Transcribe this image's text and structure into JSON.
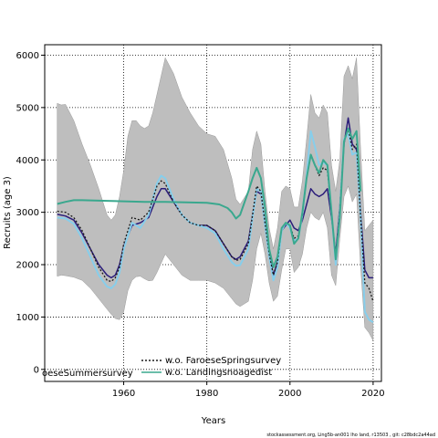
{
  "chart_data": {
    "type": "line",
    "xlabel": "Years",
    "ylabel": "Recruits (age 3)",
    "xlim": [
      1941,
      2022
    ],
    "ylim": [
      -230,
      6200
    ],
    "xticks": [
      1960,
      1980,
      2000,
      2020
    ],
    "yticks": [
      0,
      1000,
      2000,
      3000,
      4000,
      5000,
      6000
    ],
    "grid": true,
    "grid_style": "dotted",
    "legend_placement": "bottom-center",
    "legend": [
      {
        "label": "oeseSummersurvey",
        "color": "#1a1a1a",
        "style": "dotted"
      },
      {
        "label": "w.o. FaroeseSpringsurvey",
        "color": "#1a1a1a",
        "style": "dotted"
      },
      {
        "label": "w.o. Landingsnoagedist",
        "color": "#3aa88e",
        "style": "solid"
      }
    ],
    "footer": "stockassessment.org, Ling5b-an001 lho land, r13503 , git: c28bdc2a44ad",
    "band": {
      "x": [
        1944,
        1945,
        1946,
        1948,
        1950,
        1952,
        1954,
        1956,
        1957,
        1958,
        1959,
        1960,
        1961,
        1962,
        1963,
        1964,
        1965,
        1966,
        1967,
        1968,
        1970,
        1972,
        1974,
        1976,
        1978,
        1980,
        1982,
        1984,
        1986,
        1987,
        1988,
        1990,
        1991,
        1992,
        1993,
        1994,
        1995,
        1996,
        1997,
        1998,
        1999,
        2000,
        2001,
        2002,
        2003,
        2004,
        2005,
        2006,
        2007,
        2008,
        2009,
        2010,
        2011,
        2012,
        2013,
        2014,
        2015,
        2016,
        2017,
        2018,
        2019,
        2020
      ],
      "upper": [
        5080,
        5050,
        5060,
        4750,
        4300,
        3900,
        3450,
        2950,
        2850,
        2950,
        3300,
        3800,
        4450,
        4750,
        4750,
        4650,
        4600,
        4650,
        4900,
        5250,
        5950,
        5650,
        5200,
        4900,
        4650,
        4500,
        4450,
        4200,
        3650,
        3250,
        3150,
        3400,
        4200,
        4550,
        4300,
        3400,
        2700,
        2300,
        2700,
        3400,
        3500,
        3450,
        3100,
        3100,
        3600,
        4400,
        5250,
        4900,
        4800,
        5050,
        4900,
        3900,
        3400,
        4000,
        5600,
        5800,
        5550,
        5950,
        4200,
        2650,
        2750,
        2850
      ],
      "lower": [
        1780,
        1800,
        1790,
        1760,
        1700,
        1550,
        1350,
        1150,
        1050,
        970,
        950,
        1100,
        1500,
        1700,
        1770,
        1780,
        1730,
        1690,
        1700,
        1850,
        2200,
        2000,
        1800,
        1700,
        1700,
        1700,
        1650,
        1550,
        1350,
        1250,
        1200,
        1300,
        1700,
        2300,
        2600,
        2200,
        1650,
        1300,
        1400,
        1900,
        2300,
        2300,
        1850,
        1950,
        2200,
        2700,
        3000,
        2900,
        2850,
        3000,
        2700,
        1800,
        1600,
        2500,
        3300,
        3500,
        3200,
        3350,
        1950,
        800,
        700,
        550
      ]
    },
    "series": [
      {
        "color": "#2b1d7a",
        "width": 1.5,
        "dash": "",
        "x": [
          1944,
          1946,
          1948,
          1950,
          1952,
          1954,
          1956,
          1957,
          1958,
          1959,
          1960,
          1962,
          1964,
          1966,
          1968,
          1969,
          1970,
          1972,
          1974,
          1976,
          1978,
          1980,
          1982,
          1984,
          1986,
          1987,
          1988,
          1990,
          1991,
          1992,
          1993,
          1994,
          1995,
          1996,
          1997,
          1998,
          1999,
          2000,
          2001,
          2002,
          2003,
          2004,
          2005,
          2006,
          2007,
          2008,
          2009,
          2010,
          2011,
          2012,
          2013,
          2014,
          2015,
          2016,
          2017,
          2018,
          2019,
          2020
        ],
        "y": [
          2960,
          2930,
          2850,
          2600,
          2300,
          2000,
          1800,
          1750,
          1800,
          2000,
          2350,
          2750,
          2800,
          2900,
          3300,
          3450,
          3450,
          3200,
          2950,
          2800,
          2750,
          2750,
          2650,
          2400,
          2150,
          2100,
          2150,
          2450,
          2950,
          3400,
          3350,
          2800,
          2200,
          1800,
          2050,
          2650,
          2750,
          2850,
          2700,
          2650,
          2850,
          3150,
          3450,
          3350,
          3300,
          3350,
          3450,
          2900,
          2200,
          3100,
          4300,
          4800,
          4300,
          4200,
          3000,
          1900,
          1750,
          1750
        ]
      },
      {
        "color": "#87ceeb",
        "width": 2.0,
        "dash": "",
        "x": [
          1944,
          1946,
          1948,
          1950,
          1952,
          1954,
          1956,
          1957,
          1958,
          1959,
          1960,
          1962,
          1964,
          1966,
          1968,
          1969,
          1970,
          1972,
          1974,
          1976,
          1978,
          1980,
          1982,
          1984,
          1986,
          1987,
          1988,
          1990,
          1991,
          1992,
          1993,
          1994,
          1995,
          1996,
          1997,
          1998,
          1999,
          2000,
          2001,
          2002,
          2003,
          2004,
          2005,
          2006,
          2007,
          2008,
          2009,
          2010,
          2011,
          2012,
          2013,
          2014,
          2015,
          2016,
          2017,
          2018,
          2019,
          2020
        ],
        "y": [
          2900,
          2880,
          2780,
          2500,
          2150,
          1800,
          1580,
          1550,
          1630,
          1850,
          2300,
          2800,
          2700,
          2950,
          3550,
          3700,
          3650,
          3250,
          2950,
          2800,
          2750,
          2700,
          2600,
          2300,
          2050,
          1980,
          1990,
          2300,
          2900,
          3450,
          3400,
          2750,
          2150,
          1700,
          1950,
          2650,
          2800,
          2700,
          2450,
          2500,
          2950,
          3700,
          4550,
          4250,
          3900,
          3950,
          3900,
          3000,
          2000,
          3000,
          4400,
          4500,
          4100,
          4150,
          2900,
          1100,
          950,
          900
        ]
      },
      {
        "color": "#1a1a1a",
        "width": 1.3,
        "dash": "2,2",
        "x": [
          1944,
          1946,
          1948,
          1950,
          1952,
          1954,
          1956,
          1957,
          1958,
          1959,
          1960,
          1962,
          1964,
          1966,
          1968,
          1969,
          1970,
          1972,
          1974,
          1976,
          1978,
          1980,
          1982,
          1984,
          1986,
          1987,
          1988,
          1990,
          1991,
          1992,
          1993,
          1994,
          1995,
          1996,
          1997,
          1998,
          1999,
          2000,
          2001,
          2002,
          2003,
          2004,
          2005,
          2006,
          2007,
          2008,
          2009,
          2010,
          2011,
          2012,
          2013,
          2014,
          2015,
          2016,
          2017,
          2018,
          2019,
          2020
        ],
        "y": [
          3020,
          3000,
          2900,
          2650,
          2300,
          1950,
          1700,
          1680,
          1750,
          1950,
          2400,
          2900,
          2850,
          3000,
          3500,
          3600,
          3550,
          3200,
          2950,
          2800,
          2750,
          2750,
          2650,
          2400,
          2150,
          2080,
          2100,
          2400,
          2950,
          3500,
          3400,
          2800,
          2200,
          1800,
          2050,
          2700,
          2800,
          2750,
          2500,
          2550,
          2950,
          3650,
          4100,
          3900,
          3700,
          3850,
          3800,
          3000,
          2100,
          3000,
          4350,
          4600,
          4200,
          4300,
          2900,
          1650,
          1550,
          1300
        ]
      },
      {
        "color": "#3aa88e",
        "width": 2.0,
        "dash": "",
        "x": [
          1944,
          1946,
          1948,
          1950,
          1955,
          1960,
          1965,
          1970,
          1975,
          1980,
          1983,
          1985,
          1986,
          1987,
          1988,
          1990,
          1991,
          1992,
          1993,
          1994,
          1995,
          1996,
          1997,
          1998,
          1999,
          2000,
          2001,
          2002,
          2003,
          2004,
          2005,
          2006,
          2007,
          2008,
          2009,
          2010,
          2011,
          2012,
          2013,
          2014,
          2015,
          2016,
          2017
        ],
        "y": [
          3160,
          3200,
          3230,
          3230,
          3220,
          3210,
          3200,
          3200,
          3190,
          3180,
          3150,
          3080,
          3000,
          2880,
          2950,
          3400,
          3650,
          3850,
          3650,
          3100,
          2300,
          1950,
          2150,
          2700,
          2800,
          2750,
          2400,
          2500,
          3000,
          3650,
          4100,
          3900,
          3750,
          4000,
          3900,
          3000,
          2100,
          2900,
          4350,
          4600,
          4400,
          4550,
          3400
        ]
      }
    ]
  }
}
